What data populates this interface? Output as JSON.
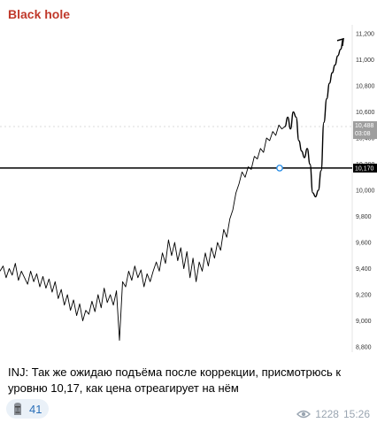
{
  "message": {
    "sender": "Black hole",
    "caption": "INJ: Так же ожидаю подъёма после коррекции, присмотрюсь к уровню 10,17, как цена отреагирует на нём",
    "views": "1228",
    "time": "15:26"
  },
  "reaction": {
    "emoji_icon": "moai-icon",
    "count": "41"
  },
  "colors": {
    "sender": "#c0392b",
    "level_line": "#000000",
    "price_line": "#000000",
    "marker": "#1e88e5"
  },
  "chart_data": {
    "type": "line",
    "ylim": [
      8800,
      11200
    ],
    "y_ticks": [
      "8,800",
      "9,000",
      "9,200",
      "9,400",
      "9,600",
      "9,800",
      "10,000",
      "10,200",
      "10,400",
      "10,600",
      "10,800",
      "11,000",
      "11,200"
    ],
    "y_tick_values": [
      8800,
      9000,
      9200,
      9400,
      9600,
      9800,
      10000,
      10200,
      10400,
      10600,
      10800,
      11000,
      11200
    ],
    "level": {
      "value": 10170,
      "label": "10,170"
    },
    "last_price": {
      "value": 10488,
      "label": "10,488",
      "countdown": "03:08"
    },
    "series": [
      {
        "values": [
          9380,
          9420,
          9330,
          9400,
          9350,
          9440,
          9310,
          9380,
          9330,
          9280,
          9380,
          9300,
          9360,
          9260,
          9340,
          9250,
          9320,
          9220,
          9300,
          9170,
          9240,
          9120,
          9200,
          9080,
          9160,
          9040,
          9130,
          9000,
          9080,
          9050,
          9150,
          9070,
          9200,
          9100,
          9250,
          9140,
          9200,
          9120,
          9230,
          8850,
          9300,
          9260,
          9380,
          9310,
          9420,
          9330,
          9390,
          9260,
          9360,
          9300,
          9380,
          9450,
          9380,
          9520,
          9440,
          9620,
          9500,
          9600,
          9460,
          9560,
          9400,
          9530,
          9330,
          9480,
          9300,
          9450,
          9380,
          9520,
          9420,
          9560,
          9480,
          9600,
          9540,
          9700,
          9640,
          9780,
          9850,
          9980,
          10050,
          10140,
          10100,
          10180,
          10160,
          10260,
          10240,
          10320,
          10290,
          10400,
          10380,
          10450,
          10420,
          10500,
          10470,
          10488
        ]
      },
      {
        "name": "",
        "values": [
          10488,
          10560,
          10470,
          10600,
          10560,
          10380,
          10300,
          10250,
          10320,
          10200,
          9980,
          9950,
          10000,
          10150,
          10520,
          10700,
          10820,
          10900,
          10960,
          11030,
          11080,
          11160
        ]
      }
    ]
  }
}
